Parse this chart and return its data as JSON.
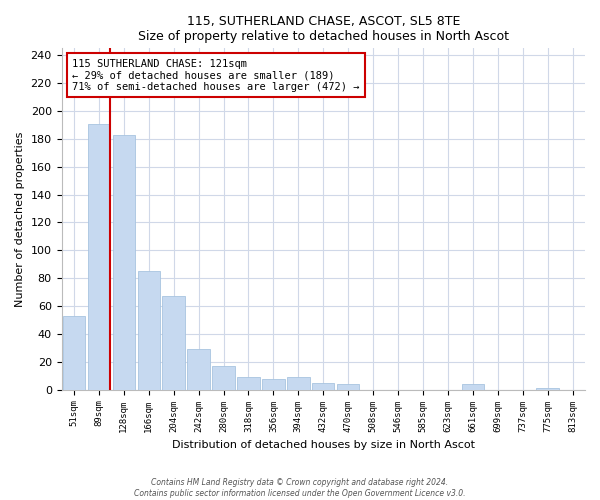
{
  "title": "115, SUTHERLAND CHASE, ASCOT, SL5 8TE",
  "subtitle": "Size of property relative to detached houses in North Ascot",
  "xlabel": "Distribution of detached houses by size in North Ascot",
  "ylabel": "Number of detached properties",
  "bar_labels": [
    "51sqm",
    "89sqm",
    "128sqm",
    "166sqm",
    "204sqm",
    "242sqm",
    "280sqm",
    "318sqm",
    "356sqm",
    "394sqm",
    "432sqm",
    "470sqm",
    "508sqm",
    "546sqm",
    "585sqm",
    "623sqm",
    "661sqm",
    "699sqm",
    "737sqm",
    "775sqm",
    "813sqm"
  ],
  "bar_values": [
    53,
    191,
    183,
    85,
    67,
    29,
    17,
    9,
    8,
    9,
    5,
    4,
    0,
    0,
    0,
    0,
    4,
    0,
    0,
    1,
    0
  ],
  "bar_color": "#c6d9f0",
  "bar_edge_color": "#a8c4e0",
  "vline_color": "#cc0000",
  "annotation_title": "115 SUTHERLAND CHASE: 121sqm",
  "annotation_line1": "← 29% of detached houses are smaller (189)",
  "annotation_line2": "71% of semi-detached houses are larger (472) →",
  "annotation_box_color": "#ffffff",
  "annotation_box_edge": "#cc0000",
  "ylim": [
    0,
    245
  ],
  "yticks": [
    0,
    20,
    40,
    60,
    80,
    100,
    120,
    140,
    160,
    180,
    200,
    220,
    240
  ],
  "footer1": "Contains HM Land Registry data © Crown copyright and database right 2024.",
  "footer2": "Contains public sector information licensed under the Open Government Licence v3.0.",
  "bg_color": "#ffffff",
  "grid_color": "#d0d8e8"
}
